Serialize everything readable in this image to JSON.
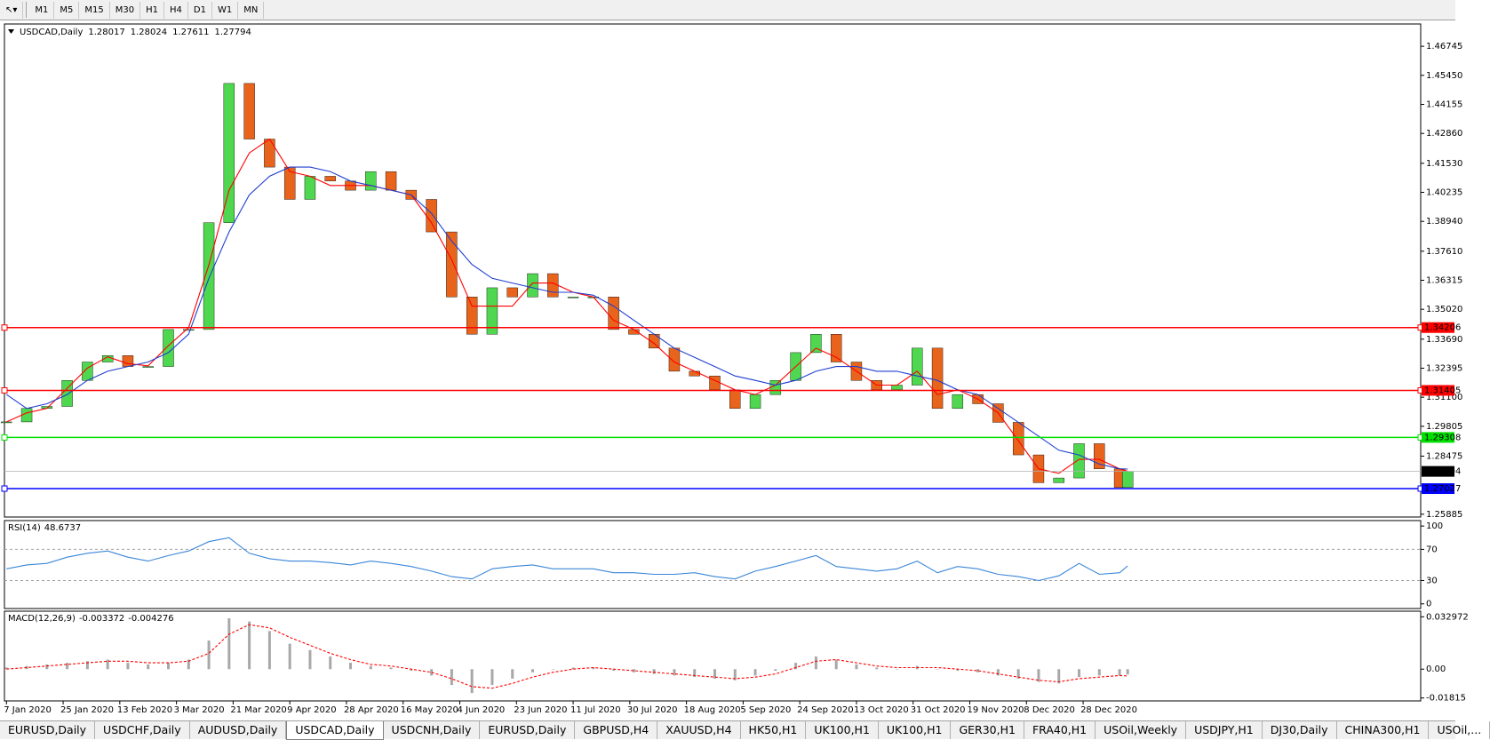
{
  "toolbar": {
    "timeframes": [
      "M1",
      "M5",
      "M15",
      "M30",
      "H1",
      "H4",
      "D1",
      "W1",
      "MN"
    ]
  },
  "tabs": [
    {
      "label": "EURUSD,Daily"
    },
    {
      "label": "USDCHF,Daily"
    },
    {
      "label": "AUDUSD,Daily"
    },
    {
      "label": "USDCAD,Daily",
      "active": true
    },
    {
      "label": "USDCNH,Daily"
    },
    {
      "label": "EURUSD,Daily"
    },
    {
      "label": "GBPUSD,H4"
    },
    {
      "label": "XAUUSD,H4"
    },
    {
      "label": "HK50,H1"
    },
    {
      "label": "UK100,H1"
    },
    {
      "label": "UK100,H1"
    },
    {
      "label": "GER30,H1"
    },
    {
      "label": "FRA40,H1"
    },
    {
      "label": "USOil,Weekly"
    },
    {
      "label": "USDJPY,H1"
    },
    {
      "label": "DJ30,Daily"
    },
    {
      "label": "CHINA300,H1"
    },
    {
      "label": "USOil,..."
    }
  ],
  "chart_data": [
    {
      "type": "candlestick",
      "title": "USDCAD,Daily",
      "header_values": [
        1.28017,
        1.28024,
        1.27611,
        1.27794
      ],
      "up_color": "#4fd84f",
      "down_color": "#e8641c",
      "x": [
        0,
        5,
        10,
        15,
        20,
        25,
        30,
        35,
        40,
        45,
        50,
        55,
        60,
        65,
        70,
        75,
        80,
        85,
        90,
        95,
        100,
        105,
        110,
        115,
        120,
        125,
        130,
        135,
        140,
        145,
        150,
        155,
        160,
        165,
        170,
        175,
        180,
        185,
        190,
        195,
        200,
        205,
        210,
        215,
        220,
        225,
        230,
        235,
        240,
        245,
        250,
        255,
        260,
        265,
        270,
        275,
        277
      ],
      "close": [
        1.3,
        1.306,
        1.3069,
        1.3185,
        1.3267,
        1.3296,
        1.3247,
        1.3247,
        1.3412,
        1.3412,
        1.3888,
        1.4509,
        1.4261,
        1.4136,
        1.3992,
        1.4095,
        1.4074,
        1.4033,
        1.4116,
        1.4033,
        1.3992,
        1.3847,
        1.3557,
        1.3391,
        1.3598,
        1.3557,
        1.3661,
        1.3557,
        1.3557,
        1.3557,
        1.3412,
        1.3391,
        1.3329,
        1.3226,
        1.3205,
        1.3143,
        1.306,
        1.3122,
        1.3185,
        1.3309,
        1.3391,
        1.3267,
        1.3185,
        1.3143,
        1.3164,
        1.3329,
        1.306,
        1.3122,
        1.3081,
        1.2998,
        1.2853,
        1.2729,
        1.275,
        1.2903,
        1.2791,
        1.2708,
        1.27794
      ],
      "series": [
        {
          "color": "#ff0000",
          "values": [
            1.3,
            1.304,
            1.306,
            1.315,
            1.324,
            1.329,
            1.326,
            1.325,
            1.334,
            1.342,
            1.37,
            1.4033,
            1.4199,
            1.4261,
            1.4116,
            1.4095,
            1.4054,
            1.4054,
            1.4054,
            1.4033,
            1.4012,
            1.3888,
            1.3723,
            1.3516,
            1.3516,
            1.3516,
            1.3619,
            1.3619,
            1.3578,
            1.3557,
            1.3453,
            1.3412,
            1.335,
            1.3267,
            1.3226,
            1.3185,
            1.3143,
            1.3122,
            1.3164,
            1.3247,
            1.3329,
            1.3288,
            1.3226,
            1.3164,
            1.3164,
            1.3226,
            1.3122,
            1.3143,
            1.3102,
            1.304,
            1.2916,
            1.2791,
            1.2771,
            1.2833,
            1.2833,
            1.2791,
            1.278
          ]
        },
        {
          "color": "#1f3fd0",
          "values": [
            1.3122,
            1.306,
            1.3081,
            1.3122,
            1.3185,
            1.3226,
            1.3247,
            1.3267,
            1.3309,
            1.3391,
            1.364,
            1.3847,
            1.4012,
            1.4095,
            1.4136,
            1.4136,
            1.4116,
            1.4074,
            1.4054,
            1.4033,
            1.4012,
            1.393,
            1.3806,
            1.3702,
            1.364,
            1.3619,
            1.3598,
            1.3578,
            1.3578,
            1.3565,
            1.3516,
            1.3453,
            1.3391,
            1.3329,
            1.3288,
            1.3247,
            1.3205,
            1.3185,
            1.3164,
            1.3185,
            1.3226,
            1.3247,
            1.3247,
            1.3226,
            1.3226,
            1.3205,
            1.3185,
            1.3143,
            1.3122,
            1.306,
            1.2998,
            1.2936,
            1.2874,
            1.2853,
            1.2812,
            1.2791,
            1.279
          ]
        }
      ],
      "levels": [
        {
          "value": 1.34206,
          "color": "#ff0000"
        },
        {
          "value": 1.31405,
          "color": "#ff0000"
        },
        {
          "value": 1.29308,
          "color": "#00e000"
        },
        {
          "value": 1.27027,
          "color": "#0000ff"
        }
      ],
      "current_price": 1.27794,
      "xlim": [
        -0.5,
        349.4
      ],
      "xticks": [
        {
          "value": 0,
          "label": "7 Jan 2020"
        },
        {
          "value": 14,
          "label": "25 Jan 2020"
        },
        {
          "value": 28,
          "label": "13 Feb 2020"
        },
        {
          "value": 42,
          "label": "3 Mar 2020"
        },
        {
          "value": 56,
          "label": "21 Mar 2020"
        },
        {
          "value": 70,
          "label": "9 Apr 2020"
        },
        {
          "value": 84,
          "label": "28 Apr 2020"
        },
        {
          "value": 98,
          "label": "16 May 2020"
        },
        {
          "value": 112,
          "label": "4 Jun 2020"
        },
        {
          "value": 126,
          "label": "23 Jun 2020"
        },
        {
          "value": 140,
          "label": "11 Jul 2020"
        },
        {
          "value": 154,
          "label": "30 Jul 2020"
        },
        {
          "value": 168,
          "label": "18 Aug 2020"
        },
        {
          "value": 182,
          "label": "5 Sep 2020"
        },
        {
          "value": 196,
          "label": "24 Sep 2020"
        },
        {
          "value": 210,
          "label": "13 Oct 2020"
        },
        {
          "value": 224,
          "label": "31 Oct 2020"
        },
        {
          "value": 238,
          "label": "19 Nov 2020"
        },
        {
          "value": 252,
          "label": "8 Dec 2020"
        },
        {
          "value": 266,
          "label": "28 Dec 2020"
        }
      ],
      "ylim": [
        1.2576,
        1.4774
      ],
      "yticks": [
        1.46745,
        {
          "value": 1.4545,
          "label": "1.45450"
        },
        1.44155,
        {
          "value": 1.4286,
          "label": "1.42860"
        },
        {
          "value": 1.4153,
          "label": "1.41530"
        },
        1.40235,
        {
          "value": 1.3894,
          "label": "1.38940"
        },
        {
          "value": 1.3761,
          "label": "1.37610"
        },
        1.36315,
        {
          "value": 1.3502,
          "label": "1.35020"
        },
        {
          "value": 1.3369,
          "label": "1.33690"
        },
        1.32395,
        {
          "value": 1.311,
          "label": "1.31100"
        },
        1.29805,
        1.28475,
        1.25885
      ]
    },
    {
      "type": "line",
      "title": "RSI(14)",
      "header_value": 48.6737,
      "color": "#3a86d8",
      "values": [
        45,
        50,
        52,
        60,
        65,
        68,
        60,
        55,
        62,
        68,
        80,
        85,
        65,
        58,
        55,
        55,
        53,
        50,
        55,
        52,
        48,
        42,
        35,
        32,
        45,
        48,
        50,
        45,
        45,
        45,
        40,
        40,
        38,
        38,
        40,
        35,
        32,
        42,
        48,
        55,
        62,
        48,
        45,
        42,
        45,
        55,
        40,
        48,
        45,
        38,
        35,
        30,
        36,
        52,
        38,
        40,
        48.6737
      ],
      "ylim": [
        -6,
        107
      ],
      "yticks": [
        100,
        70,
        30,
        0
      ],
      "grid_levels": [
        70,
        30
      ]
    },
    {
      "type": "bar",
      "title": "MACD(12,26,9)",
      "header_values": [
        -0.003372,
        -0.004276
      ],
      "series": [
        {
          "color": "#a8a8a8",
          "values": [
            0.001,
            0.002,
            0.003,
            0.004,
            0.005,
            0.006,
            0.004,
            0.003,
            0.004,
            0.006,
            0.018,
            0.032,
            0.03,
            0.024,
            0.016,
            0.012,
            0.008,
            0.004,
            0.002,
            0.001,
            -0.001,
            -0.004,
            -0.01,
            -0.015,
            -0.01,
            -0.006,
            -0.002,
            0,
            0.001,
            0.001,
            -0.001,
            -0.002,
            -0.003,
            -0.004,
            -0.005,
            -0.006,
            -0.007,
            -0.004,
            -0.001,
            0.004,
            0.008,
            0.006,
            0.003,
            0.001,
            0,
            0.002,
            0,
            -0.001,
            -0.002,
            -0.004,
            -0.006,
            -0.008,
            -0.009,
            -0.005,
            -0.004,
            -0.004,
            -0.003372
          ]
        },
        {
          "type": "line",
          "color": "#ff0000",
          "dashed": true,
          "values": [
            0,
            0.001,
            0.002,
            0.003,
            0.004,
            0.005,
            0.005,
            0.004,
            0.004,
            0.005,
            0.01,
            0.022,
            0.028,
            0.026,
            0.02,
            0.015,
            0.01,
            0.006,
            0.003,
            0.002,
            0,
            -0.002,
            -0.006,
            -0.011,
            -0.012,
            -0.009,
            -0.005,
            -0.002,
            0,
            0.001,
            0,
            -0.001,
            -0.002,
            -0.003,
            -0.004,
            -0.005,
            -0.006,
            -0.005,
            -0.003,
            0.001,
            0.005,
            0.006,
            0.004,
            0.002,
            0.001,
            0.001,
            0.001,
            0,
            -0.001,
            -0.003,
            -0.005,
            -0.007,
            -0.008,
            -0.006,
            -0.005,
            -0.004,
            -0.004276
          ]
        }
      ],
      "ylim": [
        -0.02,
        0.0365
      ],
      "yticks": [
        0.032972,
        {
          "value": 0,
          "label": "0.00"
        },
        -0.01815
      ]
    }
  ]
}
